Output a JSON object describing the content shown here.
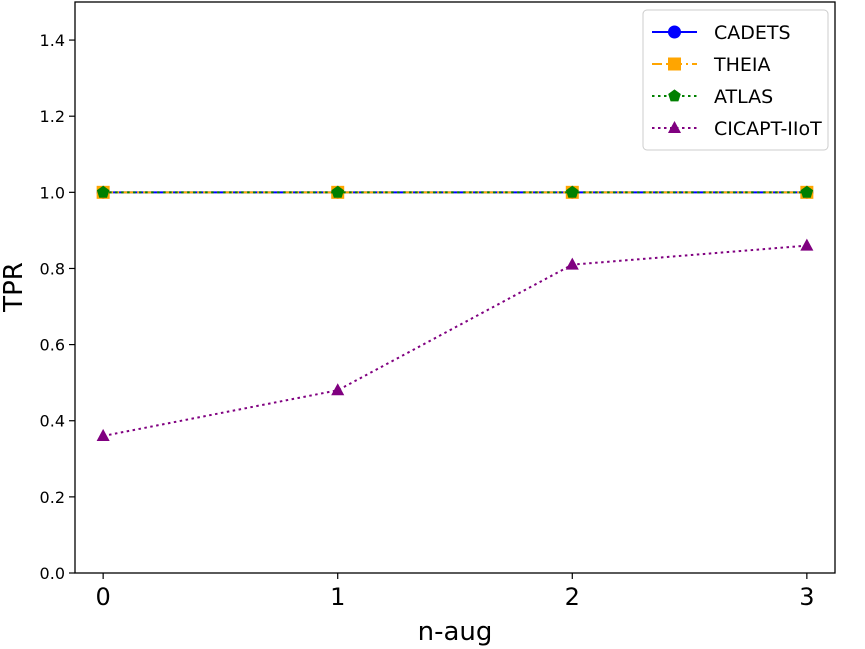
{
  "chart_data": {
    "type": "line",
    "xlabel": "n-aug",
    "ylabel": "TPR",
    "x": [
      0,
      1,
      2,
      3
    ],
    "xticks": [
      "0",
      "1",
      "2",
      "3"
    ],
    "yticks": [
      "0.0",
      "0.2",
      "0.4",
      "0.6",
      "0.8",
      "1.0",
      "1.2",
      "1.4"
    ],
    "xlim": [
      -0.12,
      3.12
    ],
    "ylim": [
      0.0,
      1.5
    ],
    "grid": false,
    "legend_position": "top-right",
    "series": [
      {
        "name": "CADETS",
        "values": [
          1.0,
          1.0,
          1.0,
          1.0
        ],
        "color": "#0000ff",
        "marker": "circle",
        "line": "solid"
      },
      {
        "name": "THEIA",
        "values": [
          1.0,
          1.0,
          1.0,
          1.0
        ],
        "color": "#ffa500",
        "marker": "square",
        "line": "dashdot"
      },
      {
        "name": "ATLAS",
        "values": [
          1.0,
          1.0,
          1.0,
          1.0
        ],
        "color": "#008000",
        "marker": "pentagon",
        "line": "dotted"
      },
      {
        "name": "CICAPT-IIoT",
        "values": [
          0.36,
          0.48,
          0.81,
          0.86
        ],
        "color": "#800080",
        "marker": "triangle",
        "line": "dotted"
      }
    ]
  }
}
